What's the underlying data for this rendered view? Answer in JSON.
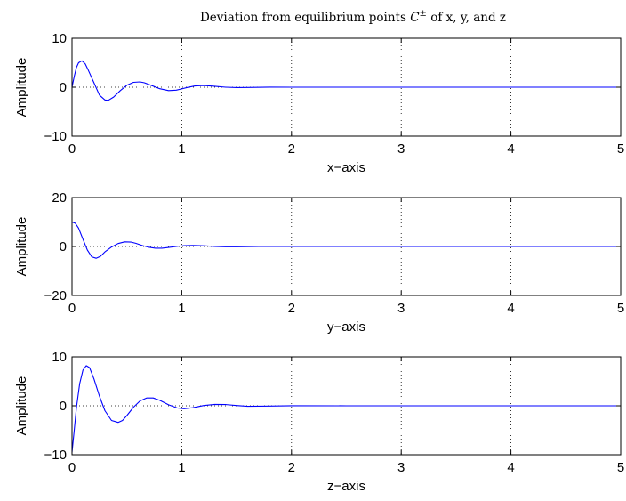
{
  "figure": {
    "title_main": "Deviation from equilibrium points ",
    "title_symbol": "C",
    "title_superscript": "±",
    "title_tail": " of x, y, and z"
  },
  "colors": {
    "line": "#0000ff",
    "axes": "#000000",
    "grid": "#000000"
  },
  "chart_data": [
    {
      "type": "line",
      "title": "Deviation from equilibrium points C± of x, y, and z",
      "xlabel": "x−axis",
      "ylabel": "Amplitude",
      "xlim": [
        0,
        5
      ],
      "ylim": [
        -10,
        10
      ],
      "xticks": [
        "0",
        "1",
        "2",
        "3",
        "4",
        "5"
      ],
      "yticks": [
        "−10",
        "0",
        "10"
      ],
      "ytick_values": [
        -10,
        0,
        10
      ],
      "grid": "dotted",
      "x": [
        0,
        0.02,
        0.04,
        0.06,
        0.09,
        0.12,
        0.15,
        0.2,
        0.25,
        0.3,
        0.33,
        0.38,
        0.44,
        0.5,
        0.56,
        0.62,
        0.66,
        0.72,
        0.8,
        0.88,
        0.95,
        1.0,
        1.05,
        1.12,
        1.2,
        1.3,
        1.4,
        1.5,
        1.6,
        1.8,
        2.0,
        2.5,
        3.0,
        4.0,
        5.0
      ],
      "y": [
        0,
        2.2,
        4.0,
        5.0,
        5.4,
        4.8,
        3.4,
        0.9,
        -1.6,
        -2.6,
        -2.7,
        -2.0,
        -0.7,
        0.4,
        1.0,
        1.1,
        0.9,
        0.4,
        -0.3,
        -0.7,
        -0.6,
        -0.35,
        -0.05,
        0.25,
        0.35,
        0.2,
        0.0,
        -0.08,
        -0.05,
        0.02,
        0,
        0,
        0,
        0,
        0
      ]
    },
    {
      "type": "line",
      "xlabel": "y−axis",
      "ylabel": "Amplitude",
      "xlim": [
        0,
        5
      ],
      "ylim": [
        -20,
        20
      ],
      "xticks": [
        "0",
        "1",
        "2",
        "3",
        "4",
        "5"
      ],
      "yticks": [
        "−20",
        "0",
        "20"
      ],
      "ytick_values": [
        -20,
        0,
        20
      ],
      "grid": "dotted",
      "x": [
        0,
        0.03,
        0.06,
        0.1,
        0.14,
        0.18,
        0.22,
        0.26,
        0.3,
        0.36,
        0.42,
        0.48,
        0.54,
        0.58,
        0.64,
        0.7,
        0.76,
        0.82,
        0.88,
        0.95,
        1.02,
        1.1,
        1.2,
        1.3,
        1.4,
        1.5,
        1.7,
        2.0,
        2.5,
        3.0,
        4.0,
        5.0
      ],
      "y": [
        10,
        9.5,
        7.5,
        3.0,
        -1.5,
        -4.2,
        -4.8,
        -4.0,
        -2.2,
        -0.2,
        1.2,
        1.9,
        1.8,
        1.3,
        0.4,
        -0.3,
        -0.7,
        -0.7,
        -0.4,
        0.0,
        0.35,
        0.45,
        0.3,
        0.05,
        -0.1,
        -0.12,
        0.0,
        0.05,
        0,
        0,
        0,
        0
      ]
    },
    {
      "type": "line",
      "xlabel": "z−axis",
      "ylabel": "Amplitude",
      "xlim": [
        0,
        5
      ],
      "ylim": [
        -10,
        10
      ],
      "xticks": [
        "0",
        "1",
        "2",
        "3",
        "4",
        "5"
      ],
      "yticks": [
        "−10",
        "0",
        "10"
      ],
      "ytick_values": [
        -10,
        0,
        10
      ],
      "grid": "dotted",
      "x": [
        0,
        0.02,
        0.04,
        0.07,
        0.1,
        0.13,
        0.16,
        0.2,
        0.25,
        0.3,
        0.36,
        0.42,
        0.46,
        0.5,
        0.56,
        0.62,
        0.68,
        0.74,
        0.8,
        0.88,
        0.96,
        1.02,
        1.1,
        1.2,
        1.3,
        1.4,
        1.5,
        1.6,
        1.8,
        2.0,
        2.5,
        3.0,
        4.0,
        5.0
      ],
      "y": [
        -9.5,
        -5.0,
        -0.5,
        4.5,
        7.3,
        8.2,
        7.8,
        5.5,
        2.0,
        -1.0,
        -3.0,
        -3.4,
        -3.0,
        -2.0,
        -0.3,
        1.0,
        1.6,
        1.6,
        1.1,
        0.2,
        -0.45,
        -0.6,
        -0.4,
        0.05,
        0.3,
        0.25,
        0.05,
        -0.1,
        -0.05,
        0.02,
        0,
        0,
        0,
        0
      ]
    }
  ]
}
